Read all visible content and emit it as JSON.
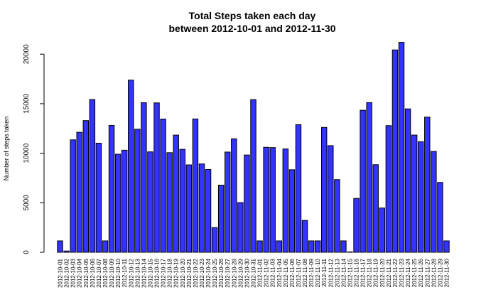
{
  "chart_data": {
    "type": "bar",
    "title": "Total Steps taken each day",
    "subtitle": "between  2012-10-01  and  2012-11-30",
    "xlabel": "",
    "ylabel": "Number of steps taken",
    "ylim": [
      0,
      21200
    ],
    "yticks": [
      0,
      5000,
      10000,
      15000,
      20000
    ],
    "bar_color": "#3333ff",
    "categories": [
      "2012-10-01",
      "2012-10-02",
      "2012-10-03",
      "2012-10-04",
      "2012-10-05",
      "2012-10-06",
      "2012-10-07",
      "2012-10-08",
      "2012-10-09",
      "2012-10-10",
      "2012-10-11",
      "2012-10-12",
      "2012-10-13",
      "2012-10-14",
      "2012-10-15",
      "2012-10-16",
      "2012-10-17",
      "2012-10-18",
      "2012-10-19",
      "2012-10-20",
      "2012-10-21",
      "2012-10-22",
      "2012-10-23",
      "2012-10-24",
      "2012-10-25",
      "2012-10-26",
      "2012-10-27",
      "2012-10-28",
      "2012-10-29",
      "2012-10-30",
      "2012-10-31",
      "2012-11-01",
      "2012-11-02",
      "2012-11-03",
      "2012-11-04",
      "2012-11-05",
      "2012-11-06",
      "2012-11-07",
      "2012-11-08",
      "2012-11-09",
      "2012-11-10",
      "2012-11-11",
      "2012-11-12",
      "2012-11-13",
      "2012-11-14",
      "2012-11-15",
      "2012-11-16",
      "2012-11-17",
      "2012-11-18",
      "2012-11-19",
      "2012-11-20",
      "2012-11-21",
      "2012-11-22",
      "2012-11-23",
      "2012-11-24",
      "2012-11-25",
      "2012-11-26",
      "2012-11-27",
      "2012-11-28",
      "2012-11-29",
      "2012-11-30"
    ],
    "values": [
      1150,
      126,
      11352,
      12116,
      13294,
      15420,
      11015,
      1150,
      12811,
      9900,
      10304,
      17382,
      12426,
      15098,
      10139,
      15084,
      13452,
      10056,
      11829,
      10395,
      8821,
      13460,
      8918,
      8355,
      2492,
      6778,
      10119,
      11458,
      5018,
      9819,
      15414,
      1150,
      10600,
      10571,
      1150,
      10439,
      8334,
      12883,
      3219,
      1150,
      1150,
      12608,
      10765,
      7336,
      1150,
      41,
      5441,
      14339,
      15110,
      8841,
      4472,
      12787,
      20427,
      21194,
      14478,
      11834,
      11162,
      13646,
      10183,
      7047,
      1150
    ]
  }
}
